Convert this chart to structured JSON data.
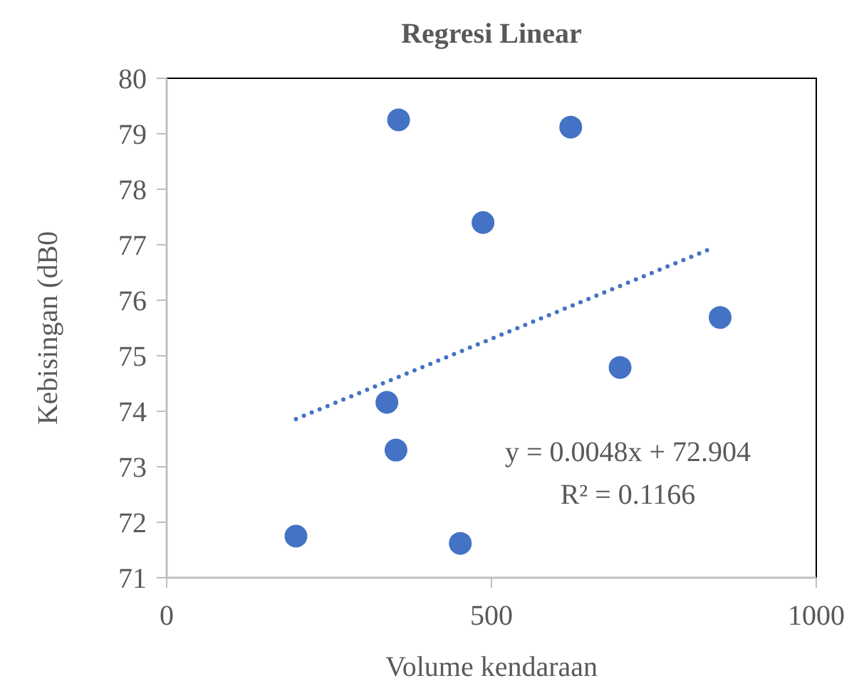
{
  "chart_data": {
    "type": "scatter",
    "title": "Regresi Linear",
    "xlabel": "Volume kendaraan",
    "ylabel": "Kebisingan (dB0",
    "xlim": [
      0,
      1000
    ],
    "xticks": [
      0,
      500,
      1000
    ],
    "ylim": [
      71,
      80
    ],
    "yticks": [
      71,
      72,
      73,
      74,
      75,
      76,
      77,
      78,
      79,
      80
    ],
    "grid": false,
    "marker": "circle",
    "series": [
      {
        "color": "#4472c4",
        "x": [
          199,
          357,
          622,
          487,
          339,
          353,
          452,
          698,
          852
        ],
        "values": [
          71.75,
          79.25,
          79.12,
          77.4,
          74.16,
          73.3,
          71.62,
          74.79,
          75.69
        ]
      },
      {
        "type": "line",
        "color": "#4472c4",
        "marker": "none",
        "line_style": "dotted",
        "x": [
          199,
          838
        ],
        "values": [
          73.86,
          76.93
        ]
      }
    ],
    "annotations": [
      "y = 0.0048x + 72.904",
      "R² = 0.1166"
    ]
  }
}
